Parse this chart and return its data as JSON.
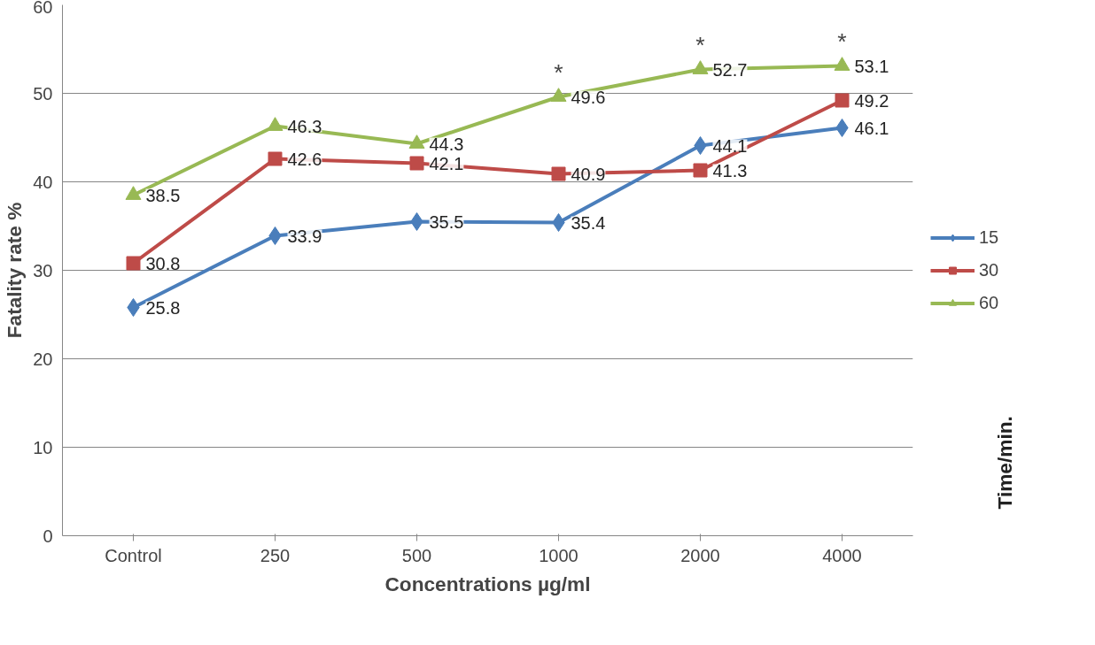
{
  "chart_data": {
    "type": "line",
    "ylabel": "Fatality rate %",
    "xlabel": "Concentrations µg/ml",
    "legend_title": "Time/min.",
    "categories": [
      "Control",
      "250",
      "500",
      "1000",
      "2000",
      "4000"
    ],
    "series": [
      {
        "name": "15",
        "color": "#4a7ebb",
        "marker": "diamond",
        "values": [
          25.8,
          33.9,
          35.5,
          35.4,
          44.1,
          46.1
        ]
      },
      {
        "name": "30",
        "color": "#be4b48",
        "marker": "square",
        "values": [
          30.8,
          42.6,
          42.1,
          40.9,
          41.3,
          49.2
        ]
      },
      {
        "name": "60",
        "color": "#98b954",
        "marker": "triangle",
        "values": [
          38.5,
          46.3,
          44.3,
          49.6,
          52.7,
          53.1
        ]
      }
    ],
    "ylim": [
      0,
      60
    ],
    "yticks": [
      0,
      10,
      20,
      30,
      40,
      50,
      60
    ],
    "grid": "y",
    "legend": "right",
    "data_labels": true,
    "line_style": "solid",
    "annotations": [
      {
        "text": "*",
        "x": "1000",
        "y": 49.6
      },
      {
        "text": "*",
        "x": "2000",
        "y": 52.7
      },
      {
        "text": "*",
        "x": "4000",
        "y": 53.1
      }
    ]
  }
}
